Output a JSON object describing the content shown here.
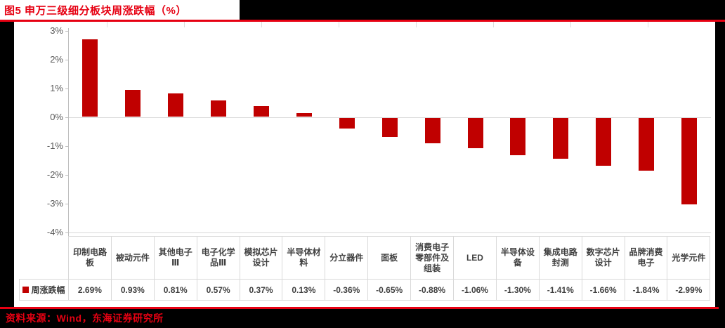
{
  "header": {
    "title": "图5  申万三级细分板块周涨跌幅（%）"
  },
  "footer": {
    "source": "资料来源：Wind，东海证券研究所"
  },
  "legend": {
    "label": "周涨跌幅"
  },
  "chart_data": {
    "type": "bar",
    "title": "申万三级细分板块周涨跌幅（%）",
    "series_name": "周涨跌幅",
    "categories": [
      "印制电路板",
      "被动元件",
      "其他电子Ⅲ",
      "电子化学品Ⅲ",
      "模拟芯片设计",
      "半导体材料",
      "分立器件",
      "面板",
      "消费电子零部件及组装",
      "LED",
      "半导体设备",
      "集成电路封测",
      "数字芯片设计",
      "品牌消费电子",
      "光学元件"
    ],
    "values": [
      2.69,
      0.93,
      0.81,
      0.57,
      0.37,
      0.13,
      -0.36,
      -0.65,
      -0.88,
      -1.06,
      -1.3,
      -1.41,
      -1.66,
      -1.84,
      -2.99
    ],
    "value_labels": [
      "2.69%",
      "0.93%",
      "0.81%",
      "0.57%",
      "0.37%",
      "0.13%",
      "-0.36%",
      "-0.65%",
      "-0.88%",
      "-1.06%",
      "-1.30%",
      "-1.41%",
      "-1.66%",
      "-1.84%",
      "-2.99%"
    ],
    "y_tick_labels": [
      "3%",
      "2%",
      "1%",
      "0%",
      "-1%",
      "-2%",
      "-3%",
      "-4%"
    ],
    "y_tick_values": [
      3,
      2,
      1,
      0,
      -1,
      -2,
      -3,
      -4
    ],
    "ylim": [
      -4,
      3
    ],
    "xlabel": "",
    "ylabel": "",
    "grid": "horizontal lines at 0% and -4% only",
    "legend_position": "bottom table row",
    "colors": {
      "bar": "#C00000",
      "accent_red": "#E60012",
      "axis_text": "#595959",
      "table_text": "#404040",
      "grid_line": "#D9D9D9",
      "background_outer": "#000000",
      "background_figure": "#FFFFFF"
    }
  }
}
